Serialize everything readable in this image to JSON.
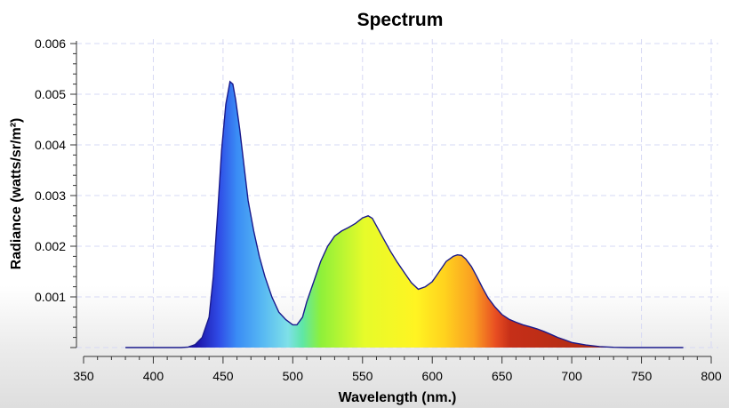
{
  "chart_data": {
    "type": "area",
    "title": "Spectrum",
    "xlabel": "Wavelength (nm.)",
    "ylabel": "Radiance (watts/sr/m²)",
    "xlim": [
      350,
      800
    ],
    "ylim": [
      0,
      0.006
    ],
    "x_ticks": [
      350,
      400,
      450,
      500,
      550,
      600,
      650,
      700,
      750,
      800
    ],
    "x_tick_labels": [
      "350",
      "400",
      "450",
      "500",
      "550",
      "600",
      "650",
      "700",
      "750",
      "800"
    ],
    "y_ticks": [
      0.001,
      0.002,
      0.003,
      0.004,
      0.005,
      0.006
    ],
    "y_tick_labels": [
      "0.001",
      "0.002",
      "0.003",
      "0.004",
      "0.005",
      "0.006"
    ],
    "grid": true,
    "fill": "visible-spectrum gradient",
    "line_color": "#1a1a8c",
    "series": [
      {
        "x": [
          380,
          400,
          420,
          425,
          430,
          435,
          440,
          443,
          446,
          449,
          452,
          455,
          457,
          459,
          462,
          465,
          468,
          472,
          476,
          480,
          485,
          490,
          495,
          500,
          503,
          507,
          510,
          515,
          520,
          525,
          530,
          535,
          540,
          545,
          550,
          554,
          557,
          560,
          565,
          570,
          575,
          580,
          585,
          590,
          595,
          600,
          605,
          610,
          615,
          618,
          621,
          624,
          628,
          632,
          636,
          640,
          645,
          650,
          655,
          660,
          665,
          670,
          675,
          680,
          685,
          690,
          695,
          700,
          710,
          720,
          730,
          740,
          760,
          780
        ],
        "y": [
          0.0,
          0.0,
          0.0,
          1e-05,
          6e-05,
          0.0002,
          0.0006,
          0.0014,
          0.0026,
          0.0039,
          0.0048,
          0.00525,
          0.0052,
          0.0049,
          0.0043,
          0.0036,
          0.0029,
          0.0023,
          0.0018,
          0.0014,
          0.001,
          0.0007,
          0.00055,
          0.00045,
          0.00045,
          0.0006,
          0.0009,
          0.0013,
          0.0017,
          0.002,
          0.0022,
          0.0023,
          0.00237,
          0.00245,
          0.00256,
          0.0026,
          0.00255,
          0.0024,
          0.00215,
          0.0019,
          0.00168,
          0.00148,
          0.00128,
          0.00115,
          0.0012,
          0.0013,
          0.0015,
          0.0017,
          0.0018,
          0.00183,
          0.00182,
          0.00175,
          0.0016,
          0.0014,
          0.00118,
          0.00098,
          0.0008,
          0.00065,
          0.00056,
          0.0005,
          0.00045,
          0.00041,
          0.00037,
          0.00032,
          0.00026,
          0.0002,
          0.00015,
          0.0001,
          5e-05,
          2e-05,
          5e-06,
          0.0,
          0.0,
          0.0
        ]
      }
    ]
  }
}
